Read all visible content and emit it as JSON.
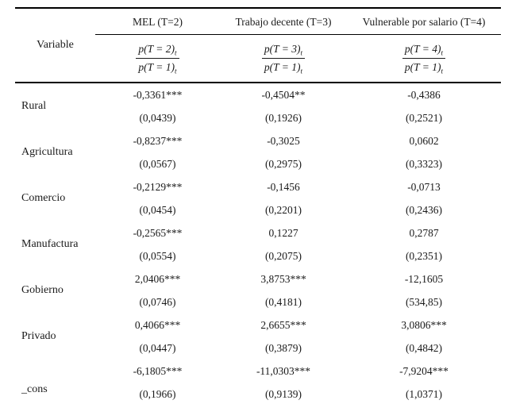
{
  "table": {
    "variable_header": "Variable",
    "columns": [
      {
        "title": "MEL (T=2)",
        "frac": {
          "num": "p(T = 2)",
          "num_sub": "t",
          "den": "p(T = 1)",
          "den_sub": "t"
        }
      },
      {
        "title": "Trabajo decente (T=3)",
        "frac": {
          "num": "p(T = 3)",
          "num_sub": "t",
          "den": "p(T = 1)",
          "den_sub": "t"
        }
      },
      {
        "title": "Vulnerable por salario (T=4)",
        "frac": {
          "num": "p(T = 4)",
          "num_sub": "t",
          "den": "p(T = 1)",
          "den_sub": "t"
        }
      }
    ],
    "rows": [
      {
        "variable": "Rural",
        "cells": [
          {
            "coef": "-0,3361***",
            "se": "(0,0439)"
          },
          {
            "coef": "-0,4504**",
            "se": "(0,1926)"
          },
          {
            "coef": "-0,4386",
            "se": "(0,2521)"
          }
        ]
      },
      {
        "variable": "Agricultura",
        "cells": [
          {
            "coef": "-0,8237***",
            "se": "(0,0567)"
          },
          {
            "coef": "-0,3025",
            "se": "(0,2975)"
          },
          {
            "coef": "0,0602",
            "se": "(0,3323)"
          }
        ]
      },
      {
        "variable": "Comercio",
        "cells": [
          {
            "coef": "-0,2129***",
            "se": "(0,0454)"
          },
          {
            "coef": "-0,1456",
            "se": "(0,2201)"
          },
          {
            "coef": "-0,0713",
            "se": "(0,2436)"
          }
        ]
      },
      {
        "variable": "Manufactura",
        "cells": [
          {
            "coef": "-0,2565***",
            "se": "(0,0554)"
          },
          {
            "coef": "0,1227",
            "se": "(0,2075)"
          },
          {
            "coef": "0,2787",
            "se": "(0,2351)"
          }
        ]
      },
      {
        "variable": "Gobierno",
        "cells": [
          {
            "coef": "2,0406***",
            "se": "(0,0746)"
          },
          {
            "coef": "3,8753***",
            "se": "(0,4181)"
          },
          {
            "coef": "-12,1605",
            "se": "(534,85)"
          }
        ]
      },
      {
        "variable": "Privado",
        "cells": [
          {
            "coef": "0,4066***",
            "se": "(0,0447)"
          },
          {
            "coef": "2,6655***",
            "se": "(0,3879)"
          },
          {
            "coef": "3,0806***",
            "se": "(0,4842)"
          }
        ]
      },
      {
        "variable": "_cons",
        "cells": [
          {
            "coef": "-6,1805***",
            "se": "(0,1966)"
          },
          {
            "coef": "-11,0303***",
            "se": "(0,9139)"
          },
          {
            "coef": "-7,9204***",
            "se": "(1,0371)"
          }
        ]
      }
    ]
  }
}
